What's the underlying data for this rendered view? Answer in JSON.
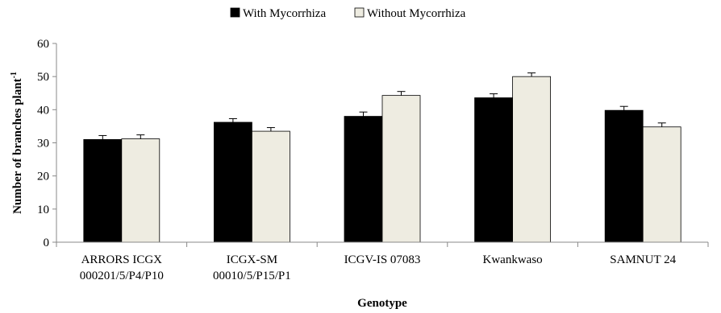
{
  "chart_data": {
    "type": "bar",
    "xlabel": "Genotype",
    "ylabel": "Number of branches plant",
    "ylabel_superscript": "-1",
    "ylim": [
      0,
      60
    ],
    "yticks": [
      0,
      10,
      20,
      30,
      40,
      50,
      60
    ],
    "grid": false,
    "legend_position": "top-center",
    "categories": [
      [
        "ARRORS ICGX",
        "000201/5/P4/P10"
      ],
      [
        "ICGX-SM",
        "00010/5/P15/P1"
      ],
      [
        "ICGV-IS 07083"
      ],
      [
        "Kwankwaso"
      ],
      [
        "SAMNUT 24"
      ]
    ],
    "series": [
      {
        "name": "With Mycorrhiza",
        "color": "#000000",
        "values": [
          31.0,
          36.2,
          38.0,
          43.6,
          39.8
        ],
        "errors": [
          1.2,
          1.1,
          1.3,
          1.2,
          1.2
        ]
      },
      {
        "name": "Without Mycorrhiza",
        "color": "#eeece1",
        "values": [
          31.2,
          33.5,
          44.3,
          50.0,
          34.8
        ],
        "errors": [
          1.2,
          1.1,
          1.2,
          1.1,
          1.2
        ]
      }
    ]
  }
}
